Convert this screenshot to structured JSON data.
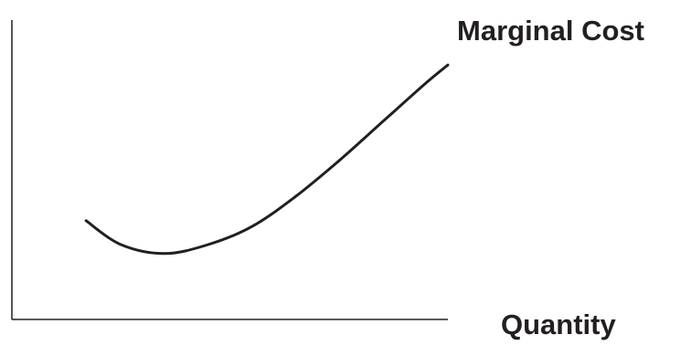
{
  "chart_data": {
    "type": "line",
    "title": "",
    "xlabel": "Quantity",
    "ylabel": "",
    "grid": false,
    "legend": "none",
    "xlim": [
      0,
      10
    ],
    "ylim": [
      0,
      10
    ],
    "series": [
      {
        "name": "Marginal Cost",
        "x": [
          1.7,
          2.5,
          3.5,
          4.5,
          5.5,
          6.5,
          7.5,
          8.5,
          9.5,
          10.0
        ],
        "y": [
          3.3,
          2.5,
          2.2,
          2.5,
          3.1,
          4.1,
          5.3,
          6.6,
          7.9,
          8.5
        ]
      }
    ],
    "colors": {
      "axis": "#231f20",
      "curve": "#231f20"
    }
  }
}
